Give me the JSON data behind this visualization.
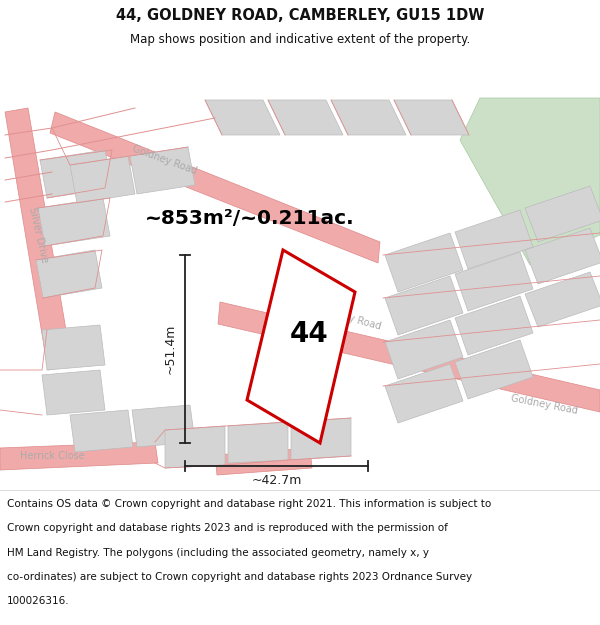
{
  "title": "44, GOLDNEY ROAD, CAMBERLEY, GU15 1DW",
  "subtitle": "Map shows position and indicative extent of the property.",
  "area_label": "~853m²/~0.211ac.",
  "plot_number": "44",
  "dim_height": "~51.4m",
  "dim_width": "~42.7m",
  "footer_lines": [
    "Contains OS data © Crown copyright and database right 2021. This information is subject to",
    "Crown copyright and database rights 2023 and is reproduced with the permission of",
    "HM Land Registry. The polygons (including the associated geometry, namely x, y",
    "co-ordinates) are subject to Crown copyright and database rights 2023 Ordnance Survey",
    "100026316."
  ],
  "map_bg": "#f2f0f0",
  "road_fill": "#f0aaaa",
  "road_edge": "#e08888",
  "plot_fill": "#ffffff",
  "plot_edge": "#cc0000",
  "building_fill": "#d4d4d4",
  "building_edge": "#bbbbbb",
  "green_fill": "#cce0c8",
  "green_edge": "#a8c8a0",
  "road_label_color": "#aaaaaa",
  "dim_color": "#222222",
  "title_color": "#111111",
  "footer_color": "#111111",
  "white": "#ffffff",
  "figsize": [
    6.0,
    6.25
  ],
  "dpi": 100,
  "title_fs": 10.5,
  "subtitle_fs": 8.5,
  "area_fs": 14.5,
  "plot_num_fs": 20,
  "dim_fs": 9,
  "road_label_fs": 7,
  "footer_fs": 7.5
}
